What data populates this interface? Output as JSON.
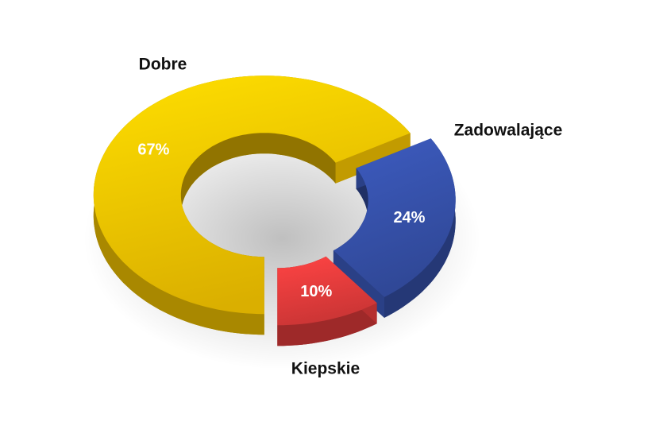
{
  "chart_data": {
    "type": "donut",
    "categories": [
      "Dobre",
      "Zadowalające",
      "Kiepskie"
    ],
    "values": [
      67,
      24,
      10
    ],
    "value_labels": [
      "67%",
      "24%",
      "10%"
    ],
    "colors": [
      "#f2c200",
      "#3550a8",
      "#e23b3b"
    ]
  }
}
